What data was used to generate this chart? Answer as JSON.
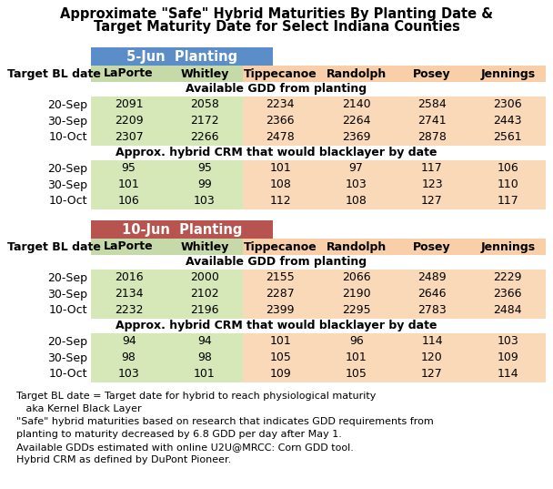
{
  "title_line1": "Approximate \"Safe\" Hybrid Maturities By Planting Date &",
  "title_line2": "Target Maturity Date for Select Indiana Counties",
  "columns": [
    "LaPorte",
    "Whitley",
    "Tippecanoe",
    "Randolph",
    "Posey",
    "Jennings"
  ],
  "section1_header": "5-Jun  Planting",
  "section1_header_color": "#5B8DC8",
  "section2_header": "10-Jun  Planting",
  "section2_header_color": "#B85450",
  "col_header_bg_left": "#C6D9A8",
  "col_header_bg_right": "#F8CFA8",
  "row_bg_left": "#D6E8B8",
  "row_bg_right": "#FAD9B8",
  "subheader_text": "Available GDD from planting",
  "subheader2_text": "Approx. hybrid CRM that would blacklayer by date",
  "target_bl_label": "Target BL date",
  "row_labels": [
    "20-Sep",
    "30-Sep",
    "10-Oct"
  ],
  "jun5_gdd": [
    [
      2091,
      2058,
      2234,
      2140,
      2584,
      2306
    ],
    [
      2209,
      2172,
      2366,
      2264,
      2741,
      2443
    ],
    [
      2307,
      2266,
      2478,
      2369,
      2878,
      2561
    ]
  ],
  "jun5_crm": [
    [
      95,
      95,
      101,
      97,
      117,
      106
    ],
    [
      101,
      99,
      108,
      103,
      123,
      110
    ],
    [
      106,
      103,
      112,
      108,
      127,
      117
    ]
  ],
  "jun10_gdd": [
    [
      2016,
      2000,
      2155,
      2066,
      2489,
      2229
    ],
    [
      2134,
      2102,
      2287,
      2190,
      2646,
      2366
    ],
    [
      2232,
      2196,
      2399,
      2295,
      2783,
      2484
    ]
  ],
  "jun10_crm": [
    [
      94,
      94,
      101,
      96,
      114,
      103
    ],
    [
      98,
      98,
      105,
      101,
      120,
      109
    ],
    [
      103,
      101,
      109,
      105,
      127,
      114
    ]
  ],
  "footnote_lines": [
    "Target BL date = Target date for hybrid to reach physiological maturity",
    "   aka Kernel Black Layer",
    "\"Safe\" hybrid maturities based on research that indicates GDD requirements from",
    "planting to maturity decreased by 6.8 GDD per day after May 1.",
    "Available GDDs estimated with online U2U@MRCC: Corn GDD tool.",
    "Hybrid CRM as defined by DuPont Pioneer."
  ],
  "bg_color": "#FFFFFF",
  "title_fontsize": 10.5,
  "col_fontsize": 9,
  "data_fontsize": 9,
  "subhdr_fontsize": 9,
  "footnote_fontsize": 8
}
